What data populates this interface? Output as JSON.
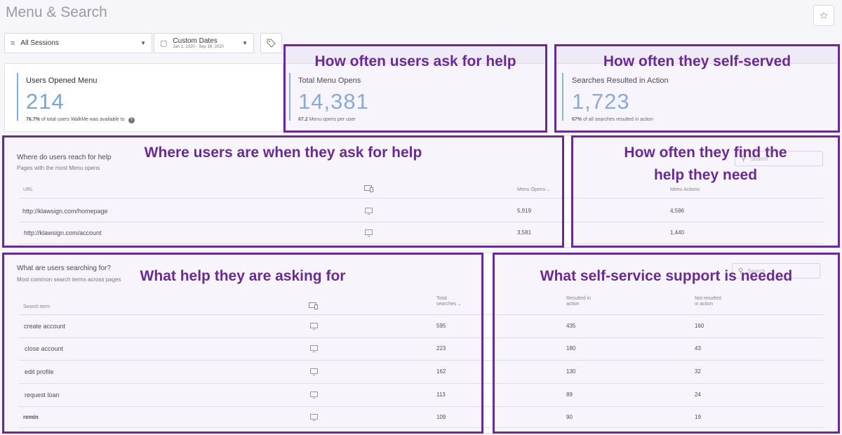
{
  "header": {
    "title": "Menu & Search",
    "star_icon": "☆"
  },
  "filters": {
    "sessions": "All Sessions",
    "dates_label": "Custom Dates",
    "dates_range": "Jan 1, 2020 - Sep 16, 2020"
  },
  "kpis": [
    {
      "label": "Users Opened Menu",
      "value": "214",
      "sub_bold": "76.7%",
      "sub": "of total users WalkMe was available to"
    },
    {
      "label": "Total Menu Opens",
      "value": "14,381",
      "sub_bold": "67.2",
      "sub": "Menu opens per user"
    },
    {
      "label": "Searches Resulted in Action",
      "value": "1,723",
      "sub_bold": "67%",
      "sub": "of all searches resulted in action"
    }
  ],
  "pages_table": {
    "title": "Where do users reach for help",
    "subtitle": "Pages with the most Menu opens",
    "search_placeholder": "Search",
    "headers": {
      "url": "URL",
      "opens": "Menu Opens",
      "actions": "Menu Actions"
    },
    "rows": [
      {
        "url": "http://klawsign.com/homepage",
        "opens": "5,919",
        "actions": "4,596"
      },
      {
        "url": "http://klawsign.com/account",
        "opens": "3,581",
        "actions": "1,440"
      }
    ]
  },
  "search_table": {
    "title": "What are users searching for?",
    "subtitle": "Most common search terms across pages",
    "search_placeholder": "Search",
    "headers": {
      "term": "Search term",
      "total_1": "Total",
      "total_2": "searches",
      "resulted_1": "Resulted in",
      "resulted_2": "action",
      "not_resulted_1": "Not resulted",
      "not_resulted_2": "in action"
    },
    "rows": [
      {
        "term": "create account",
        "total": "595",
        "resulted": "435",
        "not_resulted": "160"
      },
      {
        "term": "close account",
        "total": "223",
        "resulted": "180",
        "not_resulted": "43"
      },
      {
        "term": "edit profile",
        "total": "162",
        "resulted": "130",
        "not_resulted": "32"
      },
      {
        "term": "request loan",
        "total": "113",
        "resulted": "89",
        "not_resulted": "24"
      },
      {
        "term": "remin",
        "total": "109",
        "resulted": "90",
        "not_resulted": "19"
      }
    ]
  },
  "annotations": {
    "ask_help": "How often users ask for help",
    "self_served": "How often they self-served",
    "where_users": "Where users are when they ask for help",
    "find_help_1": "How often they find the",
    "find_help_2": "help they need",
    "what_help": "What help they are asking for",
    "self_service": "What self-service support is needed"
  },
  "colors": {
    "annotation": "#6b2a91",
    "kpi_value": "#78a7d6",
    "kpi_bar": "#7ab0dc"
  }
}
